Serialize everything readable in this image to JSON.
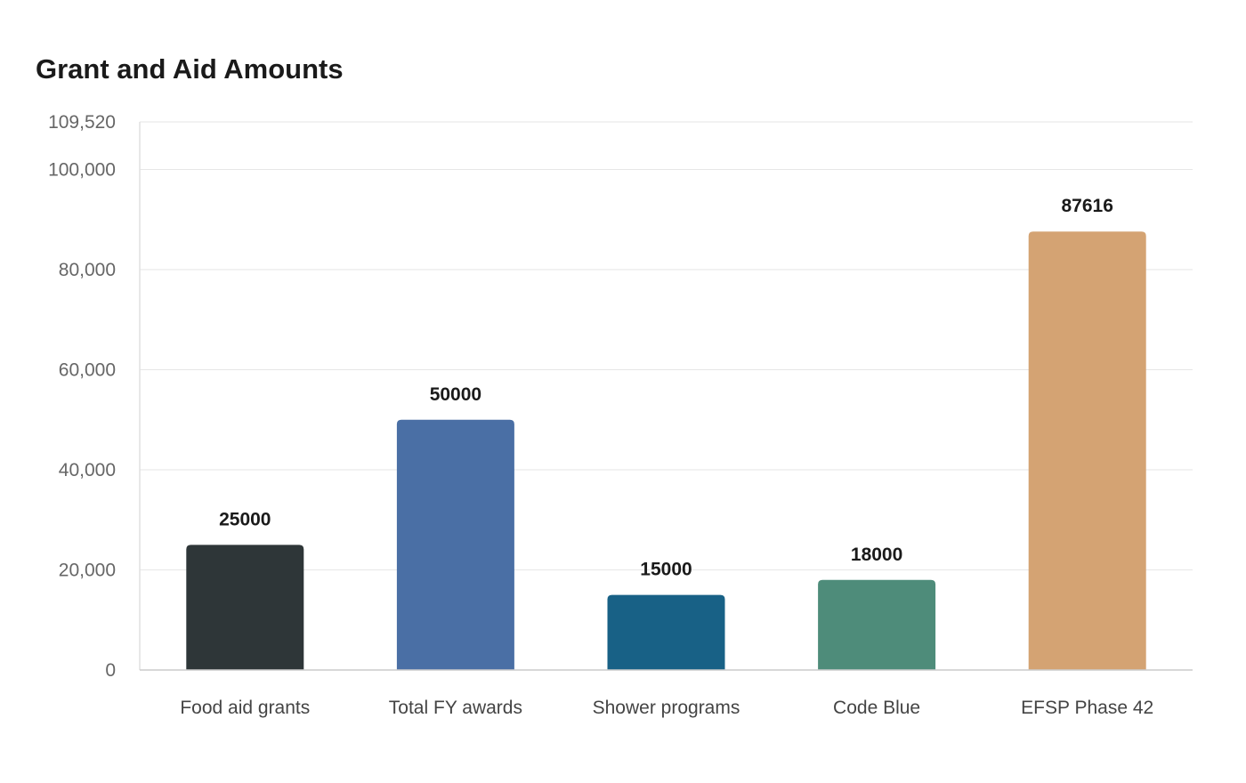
{
  "chart_data": {
    "type": "bar",
    "title": "Grant and Aid Amounts",
    "xlabel": "",
    "ylabel": "",
    "categories": [
      "Food aid grants",
      "Total FY awards",
      "Shower programs",
      "Code Blue",
      "EFSP Phase 42"
    ],
    "values": [
      25000,
      50000,
      15000,
      18000,
      87616
    ],
    "data_labels": [
      "25000",
      "50000",
      "15000",
      "18000",
      "87616"
    ],
    "colors": [
      "#2e3638",
      "#4a6fa5",
      "#186186",
      "#4e8c7a",
      "#d4a373"
    ],
    "ylim": [
      0,
      109520
    ],
    "y_ticks": [
      0,
      20000,
      40000,
      60000,
      80000,
      100000,
      109520
    ],
    "y_tick_labels": [
      "0",
      "20,000",
      "40,000",
      "60,000",
      "80,000",
      "100,000",
      "109,520"
    ],
    "grid": true,
    "legend": "none"
  }
}
